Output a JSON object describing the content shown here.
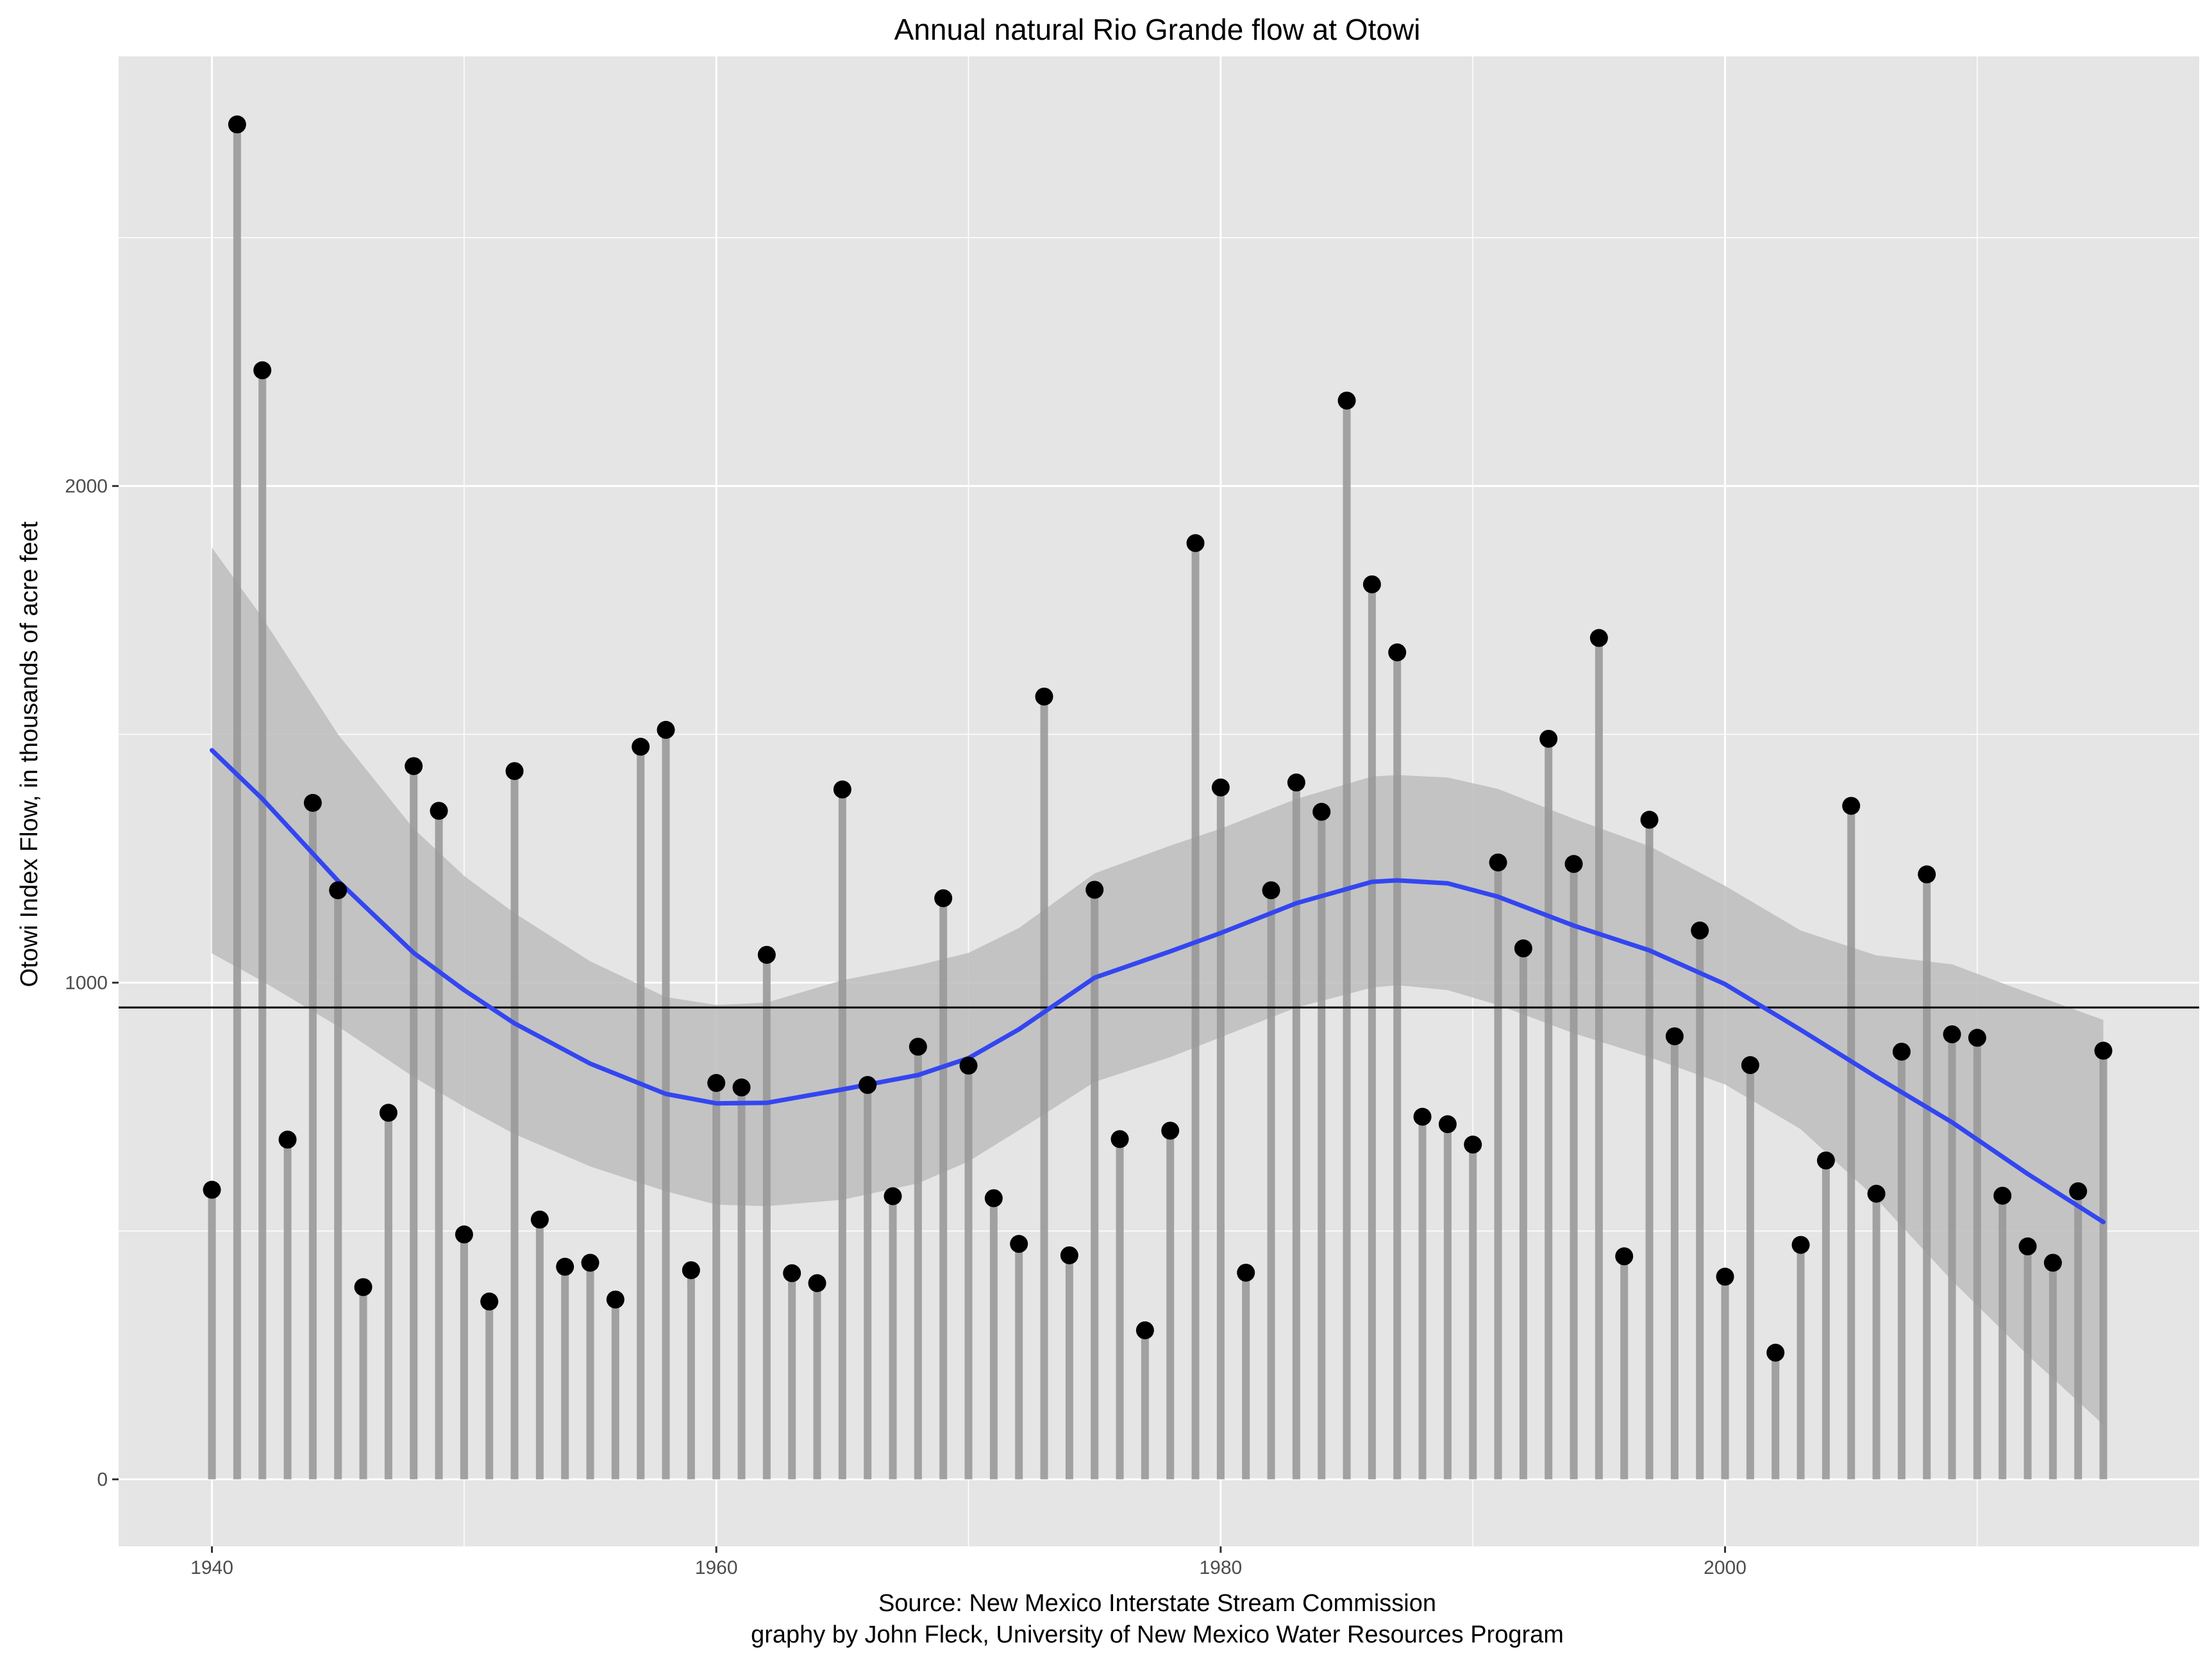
{
  "chart_data": {
    "type": "scatter",
    "title": "Annual natural Rio Grande flow at Otowi",
    "ylabel": "Otowi Index Flow, in thousands of acre feet",
    "xlabel": "",
    "caption_lines": [
      "Source: New Mexico Interstate Stream Commission",
      "graphy by John Fleck, University of New Mexico Water Resources Program"
    ],
    "xlim": [
      1936.3,
      2018.8
    ],
    "ylim": [
      -135,
      2865
    ],
    "x_ticks": [
      1940,
      1960,
      1980,
      2000
    ],
    "x_minor_ticks": [
      1950,
      1970,
      1990,
      2010
    ],
    "y_ticks": [
      0,
      1000,
      2000
    ],
    "y_minor_ticks": [
      500,
      1500,
      2500
    ],
    "grid": true,
    "reference_line": 950,
    "points": [
      {
        "x": 1940,
        "y": 583
      },
      {
        "x": 1941,
        "y": 2728
      },
      {
        "x": 1942,
        "y": 2233
      },
      {
        "x": 1943,
        "y": 684
      },
      {
        "x": 1944,
        "y": 1362
      },
      {
        "x": 1945,
        "y": 1186
      },
      {
        "x": 1946,
        "y": 387
      },
      {
        "x": 1947,
        "y": 738
      },
      {
        "x": 1948,
        "y": 1436
      },
      {
        "x": 1949,
        "y": 1346
      },
      {
        "x": 1950,
        "y": 493
      },
      {
        "x": 1951,
        "y": 358
      },
      {
        "x": 1952,
        "y": 1426
      },
      {
        "x": 1953,
        "y": 523
      },
      {
        "x": 1954,
        "y": 428
      },
      {
        "x": 1955,
        "y": 436
      },
      {
        "x": 1956,
        "y": 362
      },
      {
        "x": 1957,
        "y": 1475
      },
      {
        "x": 1958,
        "y": 1509
      },
      {
        "x": 1959,
        "y": 421
      },
      {
        "x": 1960,
        "y": 798
      },
      {
        "x": 1961,
        "y": 789
      },
      {
        "x": 1962,
        "y": 1056
      },
      {
        "x": 1963,
        "y": 415
      },
      {
        "x": 1964,
        "y": 395
      },
      {
        "x": 1965,
        "y": 1389
      },
      {
        "x": 1966,
        "y": 794
      },
      {
        "x": 1967,
        "y": 570
      },
      {
        "x": 1968,
        "y": 871
      },
      {
        "x": 1969,
        "y": 1170
      },
      {
        "x": 1970,
        "y": 833
      },
      {
        "x": 1971,
        "y": 566
      },
      {
        "x": 1972,
        "y": 474
      },
      {
        "x": 1973,
        "y": 1576
      },
      {
        "x": 1974,
        "y": 451
      },
      {
        "x": 1975,
        "y": 1187
      },
      {
        "x": 1976,
        "y": 685
      },
      {
        "x": 1977,
        "y": 300
      },
      {
        "x": 1978,
        "y": 702
      },
      {
        "x": 1979,
        "y": 1885
      },
      {
        "x": 1980,
        "y": 1393
      },
      {
        "x": 1981,
        "y": 416
      },
      {
        "x": 1982,
        "y": 1186
      },
      {
        "x": 1983,
        "y": 1403
      },
      {
        "x": 1984,
        "y": 1344
      },
      {
        "x": 1985,
        "y": 2172
      },
      {
        "x": 1986,
        "y": 1802
      },
      {
        "x": 1987,
        "y": 1665
      },
      {
        "x": 1988,
        "y": 730
      },
      {
        "x": 1989,
        "y": 715
      },
      {
        "x": 1990,
        "y": 674
      },
      {
        "x": 1991,
        "y": 1242
      },
      {
        "x": 1992,
        "y": 1069
      },
      {
        "x": 1993,
        "y": 1491
      },
      {
        "x": 1994,
        "y": 1239
      },
      {
        "x": 1995,
        "y": 1694
      },
      {
        "x": 1996,
        "y": 449
      },
      {
        "x": 1997,
        "y": 1328
      },
      {
        "x": 1998,
        "y": 892
      },
      {
        "x": 1999,
        "y": 1105
      },
      {
        "x": 2000,
        "y": 408
      },
      {
        "x": 2001,
        "y": 834
      },
      {
        "x": 2002,
        "y": 255
      },
      {
        "x": 2003,
        "y": 472
      },
      {
        "x": 2004,
        "y": 642
      },
      {
        "x": 2005,
        "y": 1356
      },
      {
        "x": 2006,
        "y": 575
      },
      {
        "x": 2007,
        "y": 861
      },
      {
        "x": 2008,
        "y": 1218
      },
      {
        "x": 2009,
        "y": 896
      },
      {
        "x": 2010,
        "y": 889
      },
      {
        "x": 2011,
        "y": 571
      },
      {
        "x": 2012,
        "y": 469
      },
      {
        "x": 2013,
        "y": 436
      },
      {
        "x": 2014,
        "y": 580
      },
      {
        "x": 2015,
        "y": 863
      }
    ],
    "smooth": {
      "x": [
        1940,
        1942,
        1945,
        1948,
        1950,
        1952,
        1955,
        1958,
        1960,
        1962,
        1965,
        1968,
        1970,
        1972,
        1975,
        1978,
        1980,
        1983,
        1986,
        1987,
        1989,
        1991,
        1994,
        1997,
        2000,
        2003,
        2006,
        2009,
        2012,
        2015
      ],
      "y": [
        1468,
        1370,
        1205,
        1060,
        985,
        918,
        837,
        776,
        757,
        758,
        785,
        814,
        848,
        906,
        1010,
        1063,
        1100,
        1160,
        1203,
        1206,
        1200,
        1173,
        1115,
        1065,
        997,
        905,
        810,
        719,
        615,
        518
      ],
      "lower": [
        1059,
        1003,
        912,
        810,
        750,
        695,
        630,
        580,
        553,
        550,
        563,
        596,
        640,
        703,
        800,
        850,
        890,
        950,
        990,
        995,
        985,
        955,
        898,
        850,
        795,
        705,
        565,
        400,
        250,
        110
      ],
      "upper": [
        1876,
        1735,
        1500,
        1310,
        1215,
        1140,
        1043,
        971,
        955,
        960,
        1005,
        1035,
        1060,
        1110,
        1220,
        1276,
        1310,
        1370,
        1415,
        1418,
        1413,
        1390,
        1330,
        1275,
        1195,
        1105,
        1055,
        1037,
        980,
        925
      ]
    },
    "colors": {
      "panel": "#e5e5e5",
      "grid": "#ffffff",
      "stem": "#999999",
      "point": "#000000",
      "smooth_line": "#3346f0",
      "ribbon": "#bdbdbd",
      "reference_line": "#000000"
    }
  }
}
